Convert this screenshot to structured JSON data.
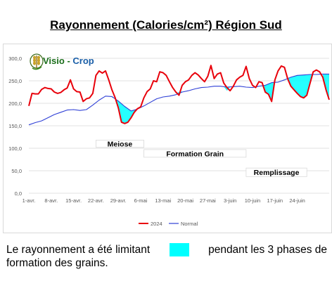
{
  "title": "Rayonnement (Calories/cm²) Région Sud",
  "logo": {
    "word1": "Visio",
    "sep": " - ",
    "word2": "Crop",
    "icon": "wheat-ear-icon"
  },
  "caption": {
    "before": "Le rayonnement a été limitant",
    "after": "pendant les 3 phases de",
    "line2": "formation des grains."
  },
  "colors": {
    "series_2024": "#e8000b",
    "series_normal": "#2e3fd6",
    "deficit_fill": "#00ffff",
    "grid": "#d9d9d9"
  },
  "chart_data": {
    "type": "line",
    "ylim": [
      0,
      300
    ],
    "yticks": [
      "0,0",
      "50,0",
      "100,0",
      "150,0",
      "200,0",
      "250,0",
      "300,0"
    ],
    "ytick_values": [
      0,
      50,
      100,
      150,
      200,
      250,
      300
    ],
    "xlim_day": [
      1,
      95
    ],
    "xticks": [
      "1-avr.",
      "8-avr.",
      "15-avr.",
      "22-avr.",
      "29-avr.",
      "6-mai",
      "13-mai",
      "20-mai",
      "27-mai",
      "3-juin",
      "10-juin",
      "17-juin",
      "24-juin"
    ],
    "xtick_days": [
      1,
      8,
      15,
      22,
      29,
      36,
      43,
      50,
      57,
      64,
      71,
      78,
      85
    ],
    "phases": [
      {
        "label": "Meiose",
        "x0": 22,
        "x1": 37,
        "y_top": 118,
        "y_bottom": 102
      },
      {
        "label": "Formation Grain",
        "x0": 37,
        "x1": 69,
        "y_top": 97,
        "y_bottom": 80
      },
      {
        "label": "Remplissage",
        "x0": 69,
        "x1": 88,
        "y_top": 56,
        "y_bottom": 37
      }
    ],
    "series": [
      {
        "name": "2024",
        "color": "#e8000b",
        "x": [
          1,
          2,
          3,
          4,
          5,
          6,
          7,
          8,
          9,
          10,
          11,
          12,
          13,
          14,
          15,
          16,
          17,
          18,
          19,
          20,
          21,
          22,
          23,
          24,
          25,
          26,
          27,
          28,
          29,
          30,
          31,
          32,
          33,
          34,
          35,
          36,
          37,
          38,
          39,
          40,
          41,
          42,
          43,
          44,
          45,
          46,
          47,
          48,
          49,
          50,
          51,
          52,
          53,
          54,
          55,
          56,
          57,
          58,
          59,
          60,
          61,
          62,
          63,
          64,
          65,
          66,
          67,
          68,
          69,
          70,
          71,
          72,
          73,
          74,
          75,
          76,
          77,
          78,
          79,
          80,
          81,
          82,
          83,
          84,
          85,
          86,
          87,
          88,
          89,
          90,
          91,
          92,
          93,
          94,
          95
        ],
        "values": [
          194,
          222,
          221,
          221,
          231,
          235,
          233,
          232,
          225,
          222,
          224,
          230,
          234,
          252,
          232,
          226,
          225,
          204,
          210,
          212,
          222,
          262,
          272,
          267,
          272,
          252,
          230,
          213,
          190,
          158,
          155,
          158,
          168,
          180,
          188,
          192,
          212,
          226,
          232,
          250,
          248,
          270,
          268,
          262,
          248,
          235,
          225,
          218,
          240,
          248,
          252,
          262,
          268,
          263,
          255,
          248,
          260,
          284,
          255,
          265,
          268,
          245,
          235,
          228,
          238,
          252,
          258,
          262,
          282,
          255,
          240,
          235,
          248,
          246,
          225,
          220,
          204,
          252,
          272,
          283,
          280,
          255,
          238,
          230,
          222,
          215,
          212,
          218,
          244,
          270,
          274,
          270,
          258,
          230,
          208
        ]
      },
      {
        "name": "Normal",
        "color": "#2e3fd6",
        "x": [
          1,
          3,
          5,
          7,
          9,
          11,
          13,
          15,
          17,
          19,
          21,
          23,
          25,
          27,
          29,
          31,
          33,
          35,
          37,
          39,
          41,
          43,
          45,
          47,
          49,
          51,
          53,
          55,
          57,
          59,
          61,
          63,
          65,
          67,
          69,
          71,
          73,
          75,
          77,
          79,
          81,
          83,
          85,
          87,
          89,
          91,
          93,
          95
        ],
        "values": [
          152,
          157,
          161,
          168,
          175,
          180,
          185,
          186,
          184,
          186,
          196,
          207,
          216,
          215,
          205,
          193,
          183,
          187,
          194,
          202,
          210,
          214,
          216,
          219,
          225,
          228,
          232,
          235,
          236,
          238,
          238,
          236,
          237,
          238,
          236,
          235,
          238,
          240,
          246,
          247,
          252,
          258,
          262,
          263,
          264,
          264,
          265,
          265
        ]
      }
    ],
    "deficit_areas": [
      {
        "x": [
          27,
          28,
          29,
          30,
          31,
          32,
          33,
          34,
          35,
          36
        ],
        "upper": [
          214,
          211,
          205,
          200,
          193,
          187,
          183,
          185,
          187,
          190
        ],
        "lower": [
          213,
          211,
          190,
          158,
          155,
          158,
          168,
          180,
          187,
          190
        ]
      },
      {
        "x": [
          46,
          47,
          48,
          49,
          50
        ],
        "upper": [
          220,
          222,
          225,
          227,
          228
        ],
        "lower": [
          220,
          222,
          218,
          227,
          228
        ]
      },
      {
        "x": [
          60,
          61,
          62,
          63,
          64,
          65,
          66
        ],
        "upper": [
          238,
          238,
          237,
          236,
          236,
          237,
          237
        ],
        "lower": [
          238,
          238,
          237,
          228,
          236,
          237,
          237
        ]
      },
      {
        "x": [
          71,
          72,
          73,
          74,
          75,
          76,
          77,
          78
        ],
        "upper": [
          235,
          236,
          238,
          239,
          240,
          243,
          246,
          246
        ],
        "lower": [
          235,
          235,
          238,
          239,
          225,
          220,
          204,
          246
        ]
      },
      {
        "x": [
          82,
          83,
          84,
          85,
          86,
          87,
          88,
          89,
          90
        ],
        "upper": [
          255,
          258,
          260,
          262,
          262,
          263,
          263,
          264,
          264
        ],
        "lower": [
          255,
          238,
          230,
          222,
          215,
          212,
          218,
          244,
          264
        ]
      },
      {
        "x": [
          93,
          94,
          95
        ],
        "upper": [
          265,
          265,
          265
        ],
        "lower": [
          258,
          230,
          208
        ]
      }
    ],
    "legend": {
      "position": "bottom",
      "entries": [
        "2024",
        "Normal"
      ]
    },
    "grid": true
  }
}
